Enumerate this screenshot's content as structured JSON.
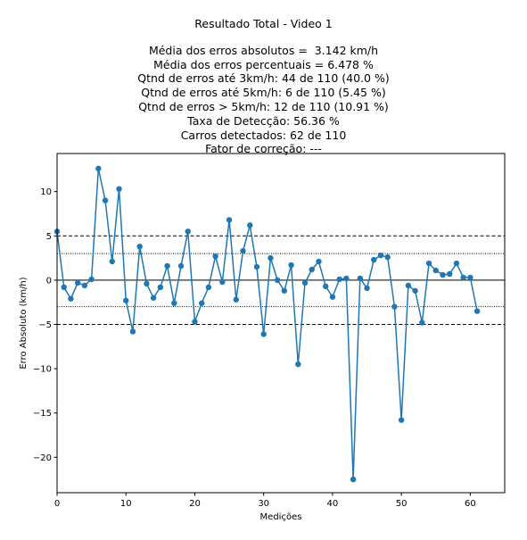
{
  "chart_data": {
    "type": "line",
    "title": "Resultado Total - Video 1",
    "subtitle_lines": [
      "Média dos erros absolutos =  3.142 km/h",
      "Média dos erros percentuais = 6.478 %",
      "Qtnd de erros até 3km/h: 44 de 110 (40.0 %)",
      "Qtnd de erros até 5km/h: 6 de 110 (5.45 %)",
      "Qtnd de erros > 5km/h: 12 de 110 (10.91 %)",
      "Taxa de Detecção: 56.36 %",
      "Carros detectados: 62 de 110",
      "Fator de correção: ---"
    ],
    "xlabel": "Medições",
    "ylabel": "Erro Absoluto (km/h)",
    "xlim": [
      0,
      65
    ],
    "ylim": [
      -24,
      14.3
    ],
    "xticks": [
      0,
      10,
      20,
      30,
      40,
      50,
      60
    ],
    "yticks": [
      -20,
      -15,
      -10,
      -5,
      0,
      5,
      10
    ],
    "ytick_labels": [
      "−20",
      "−15",
      "−10",
      "−5",
      "0",
      "5",
      "10"
    ],
    "reference_lines": [
      {
        "y": 5,
        "style": "dashed"
      },
      {
        "y": -5,
        "style": "dashed"
      },
      {
        "y": 3,
        "style": "dotted"
      },
      {
        "y": -3,
        "style": "dotted"
      },
      {
        "y": 0,
        "style": "solid"
      }
    ],
    "series_color": "#1f77b4",
    "x": [
      0,
      1,
      2,
      3,
      4,
      5,
      6,
      7,
      8,
      9,
      10,
      11,
      12,
      13,
      14,
      15,
      16,
      17,
      18,
      19,
      20,
      21,
      22,
      23,
      24,
      25,
      26,
      27,
      28,
      29,
      30,
      31,
      32,
      33,
      34,
      35,
      36,
      37,
      38,
      39,
      40,
      41,
      42,
      43,
      44,
      45,
      46,
      47,
      48,
      49,
      50,
      51,
      52,
      53,
      54,
      55,
      56,
      57,
      58,
      59,
      60,
      61
    ],
    "y": [
      5.5,
      -0.8,
      -2.1,
      -0.3,
      -0.6,
      0.1,
      12.6,
      9.0,
      2.1,
      10.3,
      -2.3,
      -5.8,
      3.8,
      -0.4,
      -2.0,
      -0.8,
      1.6,
      -2.6,
      1.6,
      5.5,
      -4.7,
      -2.6,
      -0.8,
      2.7,
      -0.2,
      6.8,
      -2.2,
      3.3,
      6.2,
      1.5,
      -6.1,
      2.5,
      0.0,
      -1.2,
      1.7,
      -9.5,
      -0.3,
      1.2,
      2.1,
      -0.7,
      -1.9,
      0.1,
      0.2,
      -22.5,
      0.2,
      -0.9,
      2.3,
      2.8,
      2.6,
      -3.0,
      -15.8,
      -0.6,
      -1.2,
      -4.8,
      1.9,
      1.1,
      0.6,
      0.7,
      1.9,
      0.3,
      0.3,
      -3.5
    ]
  }
}
